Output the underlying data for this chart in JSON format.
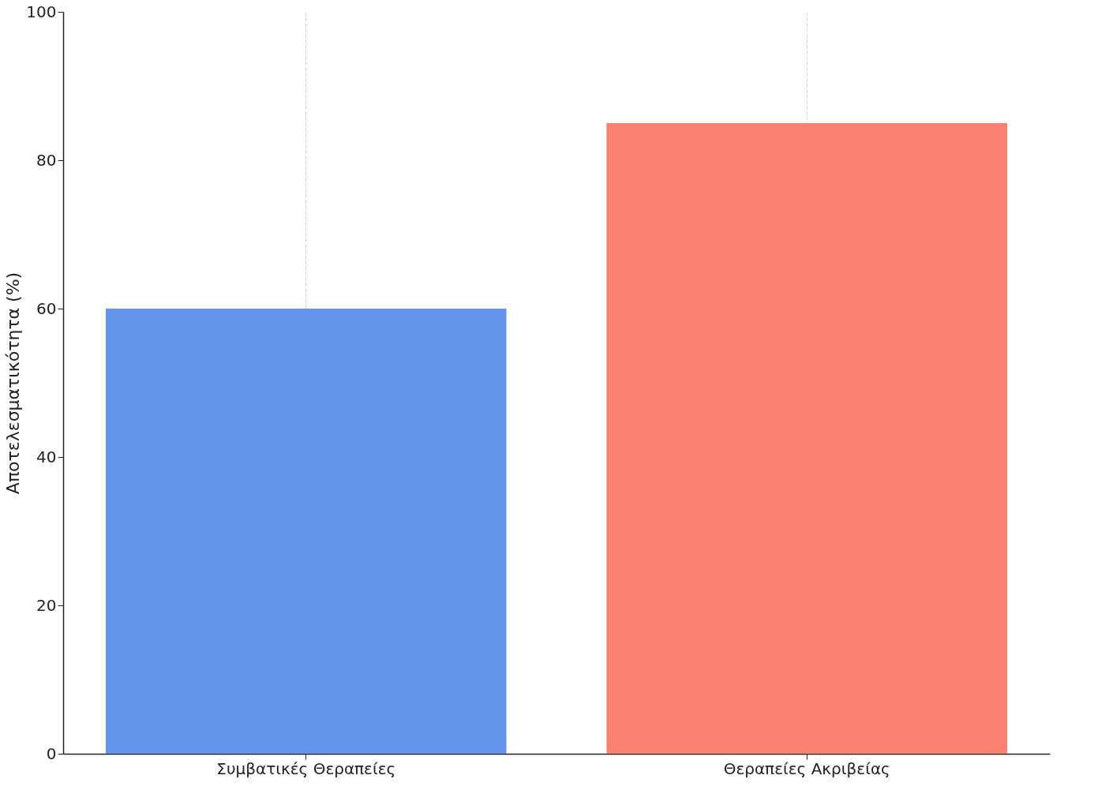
{
  "chart_data": {
    "type": "bar",
    "ylabel": "Αποτελεσματικότητα (%)",
    "categories": [
      "Συμβατικές Θεραπείες",
      "Θεραπείες Ακριβείας"
    ],
    "values": [
      60,
      85
    ],
    "colors": [
      "#6495ed",
      "#fa8072"
    ],
    "ylim": [
      0,
      100
    ],
    "yticks": [
      0,
      20,
      40,
      60,
      80,
      100
    ],
    "grid": "x"
  }
}
